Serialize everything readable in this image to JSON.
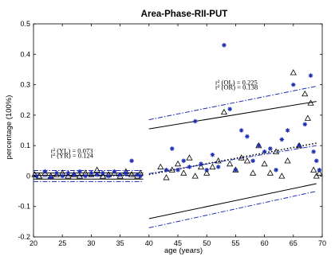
{
  "chart_data": {
    "type": "scatter",
    "title": "Area-Phase-RII-PUT",
    "xlabel": "age (years)",
    "ylabel": "percentage (100%)",
    "xlim": [
      20,
      70
    ],
    "ylim": [
      -0.2,
      0.5
    ],
    "xticks": [
      20,
      25,
      30,
      35,
      40,
      45,
      50,
      55,
      60,
      65,
      70
    ],
    "yticks": [
      0.5,
      0.4,
      0.3,
      0.2,
      0.1,
      0,
      -0.1,
      -0.2
    ],
    "grid": false,
    "annotations": [
      {
        "text": "r² (YL) = 0.073",
        "x": 23,
        "y": 0.075
      },
      {
        "text": "r² (YR) = 0.124",
        "x": 23,
        "y": 0.06
      },
      {
        "text": "r² (OL) = 0.225",
        "x": 51.5,
        "y": 0.3
      },
      {
        "text": "r² (OR) = 0.138",
        "x": 51.5,
        "y": 0.285
      }
    ],
    "series": [
      {
        "marker": "triangle",
        "color": "#000000",
        "points": [
          [
            20.2,
            0.005
          ],
          [
            21,
            0
          ],
          [
            22,
            0.01
          ],
          [
            23,
            0
          ],
          [
            24,
            0.005
          ],
          [
            25,
            0.01
          ],
          [
            26,
            0
          ],
          [
            27,
            0.005
          ],
          [
            28,
            0
          ],
          [
            29,
            0.01
          ],
          [
            30,
            0.005
          ],
          [
            31,
            0.02
          ],
          [
            32,
            0
          ],
          [
            33,
            0.005
          ],
          [
            34,
            0.01
          ],
          [
            35,
            0
          ],
          [
            36,
            0.015
          ],
          [
            37,
            0.005
          ],
          [
            38,
            0
          ],
          [
            38.5,
            0.01
          ],
          [
            42,
            0.03
          ],
          [
            43,
            -0.005
          ],
          [
            44,
            0.02
          ],
          [
            45,
            0.04
          ],
          [
            46,
            0.01
          ],
          [
            47,
            0.06
          ],
          [
            48,
            0
          ],
          [
            49,
            0.03
          ],
          [
            50,
            0.01
          ],
          [
            51,
            0.03
          ],
          [
            52,
            0.05
          ],
          [
            53,
            0.21
          ],
          [
            54,
            0.04
          ],
          [
            55,
            0.02
          ],
          [
            56,
            0.06
          ],
          [
            57,
            0.05
          ],
          [
            58,
            0.01
          ],
          [
            59,
            0.1
          ],
          [
            60,
            0.04
          ],
          [
            61,
            0.01
          ],
          [
            62,
            0.08
          ],
          [
            63,
            0
          ],
          [
            64,
            0.05
          ],
          [
            65,
            0.34
          ],
          [
            66,
            0.1
          ],
          [
            67,
            0.27
          ],
          [
            67.5,
            0.19
          ],
          [
            68,
            0.24
          ],
          [
            68.5,
            0.02
          ],
          [
            69,
            0
          ],
          [
            69.5,
            0.01
          ]
        ]
      },
      {
        "marker": "star",
        "color": "#1f2fb0",
        "points": [
          [
            20.5,
            0
          ],
          [
            22,
            0.015
          ],
          [
            23,
            -0.005
          ],
          [
            24,
            0.01
          ],
          [
            25,
            0
          ],
          [
            26,
            0.01
          ],
          [
            27,
            0.005
          ],
          [
            28,
            0.015
          ],
          [
            29,
            0
          ],
          [
            30,
            0.01
          ],
          [
            31,
            0.005
          ],
          [
            32,
            0.01
          ],
          [
            33,
            0
          ],
          [
            34,
            0.015
          ],
          [
            35,
            0.005
          ],
          [
            36,
            0.01
          ],
          [
            37,
            0.05
          ],
          [
            38,
            0.005
          ],
          [
            38.5,
            0
          ],
          [
            43,
            0.02
          ],
          [
            44,
            0.09
          ],
          [
            45,
            0.02
          ],
          [
            46,
            0.05
          ],
          [
            47,
            0.03
          ],
          [
            48,
            0.18
          ],
          [
            49,
            0.04
          ],
          [
            50,
            0.02
          ],
          [
            51,
            0.07
          ],
          [
            52,
            0.03
          ],
          [
            53,
            0.43
          ],
          [
            54,
            0.22
          ],
          [
            55,
            0.02
          ],
          [
            56,
            0.15
          ],
          [
            57,
            0.13
          ],
          [
            58,
            0.05
          ],
          [
            59,
            0.1
          ],
          [
            60,
            0.08
          ],
          [
            61,
            0.09
          ],
          [
            62,
            0.02
          ],
          [
            63,
            0.12
          ],
          [
            64,
            0.15
          ],
          [
            65,
            0.3
          ],
          [
            66,
            0.1
          ],
          [
            67,
            0.17
          ],
          [
            68,
            0.33
          ],
          [
            68.5,
            0.08
          ],
          [
            69,
            0.05
          ],
          [
            69.5,
            0.02
          ]
        ]
      }
    ],
    "fit_lines": [
      {
        "style": "solid",
        "color": "#000000",
        "x": [
          20,
          39
        ],
        "y": [
          0.01,
          0.01
        ]
      },
      {
        "style": "solid",
        "color": "#000000",
        "x": [
          20,
          39
        ],
        "y": [
          -0.01,
          -0.01
        ]
      },
      {
        "style": "dashdot",
        "color": "#1f2fb0",
        "x": [
          20,
          39
        ],
        "y": [
          0.018,
          0.018
        ]
      },
      {
        "style": "dashdot",
        "color": "#1f2fb0",
        "x": [
          20,
          39
        ],
        "y": [
          -0.018,
          -0.018
        ]
      },
      {
        "style": "solid",
        "color": "#000000",
        "x": [
          20,
          39
        ],
        "y": [
          0.002,
          0.003
        ]
      },
      {
        "style": "dashdot",
        "color": "#1f2fb0",
        "x": [
          20,
          39
        ],
        "y": [
          -0.002,
          0.001
        ]
      },
      {
        "style": "solid",
        "color": "#000000",
        "x": [
          40,
          69
        ],
        "y": [
          0.155,
          0.245
        ]
      },
      {
        "style": "solid",
        "color": "#000000",
        "x": [
          40,
          69
        ],
        "y": [
          -0.14,
          -0.025
        ]
      },
      {
        "style": "dashdot",
        "color": "#1f2fb0",
        "x": [
          40,
          69
        ],
        "y": [
          0.185,
          0.295
        ]
      },
      {
        "style": "dashdot",
        "color": "#1f2fb0",
        "x": [
          40,
          69
        ],
        "y": [
          -0.17,
          -0.05
        ]
      },
      {
        "style": "dotted-black",
        "color": "#000000",
        "x": [
          40,
          69
        ],
        "y": [
          0.005,
          0.108
        ]
      },
      {
        "style": "dashdot",
        "color": "#1f2fb0",
        "x": [
          40,
          69
        ],
        "y": [
          0.008,
          0.1
        ]
      }
    ]
  }
}
